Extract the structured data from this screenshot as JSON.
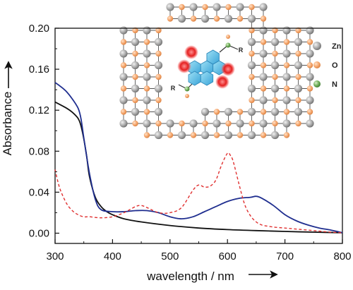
{
  "chart_data": {
    "type": "line",
    "xlabel": "wavelength / nm",
    "ylabel": "Absorbance",
    "xlim": [
      300,
      800
    ],
    "ylim": [
      -0.01,
      0.2
    ],
    "xticks": [
      "300",
      "400",
      "500",
      "600",
      "700",
      "800"
    ],
    "yticks": [
      "0.00",
      "0.04",
      "0.08",
      "0.12",
      "0.16",
      "0.20"
    ],
    "grid": false,
    "series": [
      {
        "color": "#111111",
        "style": "solid",
        "x": [
          300,
          320,
          330,
          340,
          345,
          350,
          355,
          360,
          370,
          380,
          390,
          400,
          420,
          450,
          500,
          550,
          600,
          650,
          700,
          750,
          800
        ],
        "y": [
          0.128,
          0.122,
          0.118,
          0.112,
          0.105,
          0.092,
          0.075,
          0.055,
          0.035,
          0.026,
          0.021,
          0.018,
          0.014,
          0.011,
          0.0075,
          0.005,
          0.0035,
          0.0025,
          0.0017,
          0.001,
          0.0005
        ]
      },
      {
        "color": "#1f2e8f",
        "style": "solid",
        "x": [
          300,
          310,
          320,
          330,
          340,
          345,
          350,
          360,
          370,
          380,
          400,
          420,
          440,
          460,
          480,
          500,
          520,
          540,
          560,
          580,
          600,
          620,
          640,
          650,
          660,
          680,
          700,
          720,
          740,
          760,
          780,
          800
        ],
        "y": [
          0.147,
          0.143,
          0.138,
          0.131,
          0.122,
          0.112,
          0.093,
          0.058,
          0.033,
          0.023,
          0.021,
          0.021,
          0.022,
          0.022,
          0.02,
          0.016,
          0.014,
          0.016,
          0.021,
          0.026,
          0.031,
          0.034,
          0.035,
          0.036,
          0.034,
          0.027,
          0.018,
          0.012,
          0.008,
          0.005,
          0.003,
          0.0005
        ]
      },
      {
        "color": "#e03030",
        "style": "dashed",
        "x": [
          300,
          305,
          310,
          320,
          330,
          340,
          350,
          360,
          380,
          400,
          420,
          440,
          450,
          460,
          480,
          500,
          520,
          540,
          550,
          560,
          570,
          580,
          590,
          600,
          605,
          610,
          620,
          630,
          640,
          650,
          660,
          680,
          700,
          720,
          740,
          760,
          780,
          800
        ],
        "y": [
          0.062,
          0.05,
          0.041,
          0.029,
          0.022,
          0.018,
          0.016,
          0.016,
          0.015,
          0.016,
          0.02,
          0.026,
          0.027,
          0.025,
          0.02,
          0.02,
          0.025,
          0.042,
          0.047,
          0.045,
          0.046,
          0.052,
          0.067,
          0.078,
          0.076,
          0.07,
          0.048,
          0.028,
          0.017,
          0.011,
          0.008,
          0.006,
          0.005,
          0.004,
          0.003,
          0.002,
          0.001,
          0.0005
        ]
      }
    ],
    "inset_legend": [
      {
        "label": "Zn",
        "color": "#9a9a9a"
      },
      {
        "label": "O",
        "color": "#f4a46a"
      },
      {
        "label": "N",
        "color": "#6aaa55"
      }
    ],
    "inset_labels": [
      "R",
      "R"
    ]
  }
}
